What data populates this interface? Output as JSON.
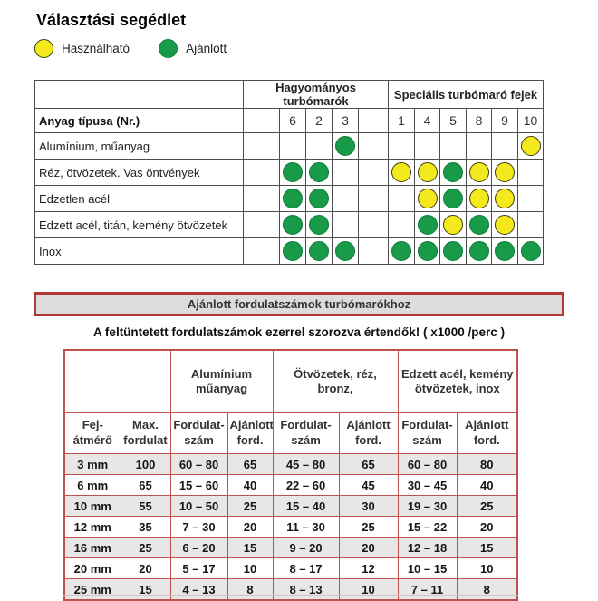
{
  "title": "Választási segédlet",
  "legend": {
    "usable_label": "Használható",
    "recommended_label": "Ajánlott"
  },
  "colors": {
    "usable_yellow": "#f3e91c",
    "recommended_green": "#189a49",
    "selection_table_border": "#4d4d4d",
    "speed_table_border": "#c0504d",
    "banner_red": "#b23832",
    "banner_gray": "#dcdcdc",
    "shaded_row_gray": "#e7e7e7"
  },
  "selection_table": {
    "row_header": "Anyag típusa (Nr.)",
    "groups": [
      {
        "label": "Hagyományos turbómarók",
        "columns": [
          "6",
          "2",
          "3"
        ]
      },
      {
        "label": "Speciális turbómaró fejek",
        "columns": [
          "1",
          "4",
          "5",
          "8",
          "9",
          "10"
        ]
      }
    ],
    "column_order": [
      "6",
      "2",
      "3",
      "1",
      "4",
      "5",
      "8",
      "9",
      "10"
    ],
    "rows": [
      {
        "label": "Alumínium, műanyag",
        "marks": [
          "",
          "",
          "recommended",
          "",
          "",
          "",
          "",
          "",
          "usable"
        ]
      },
      {
        "label": "Réz, ötvözetek. Vas öntvények",
        "marks": [
          "recommended",
          "recommended",
          "",
          "usable",
          "usable",
          "recommended",
          "usable",
          "usable",
          ""
        ]
      },
      {
        "label": "Edzetlen acél",
        "marks": [
          "recommended",
          "recommended",
          "",
          "",
          "usable",
          "recommended",
          "usable",
          "usable",
          ""
        ]
      },
      {
        "label": "Edzett acél, titán, kemény ötvözetek",
        "marks": [
          "recommended",
          "recommended",
          "",
          "",
          "recommended",
          "usable",
          "recommended",
          "usable",
          ""
        ]
      },
      {
        "label": "Inox",
        "marks": [
          "recommended",
          "recommended",
          "recommended",
          "recommended",
          "recommended",
          "recommended",
          "recommended",
          "recommended",
          "recommended"
        ]
      }
    ]
  },
  "speed_section": {
    "banner": "Ajánlott fordulatszámok turbómarókhoz",
    "note": "A feltüntetett fordulatszámok ezerrel szorozva értendők! ( x1000 /perc )",
    "group_headers": [
      "Alumínium műanyag",
      "Ötvözetek, réz, bronz,",
      "Edzett acél, kemény ötvözetek, inox"
    ],
    "column_headers": [
      "Fej-átmérő",
      "Max. fordulat",
      "Fordulat-szám",
      "Ajánlott ford.",
      "Fordulat-szám",
      "Ajánlott ford.",
      "Fordulat-szám",
      "Ajánlott ford."
    ],
    "rows": [
      [
        "3 mm",
        "100",
        "60 – 80",
        "65",
        "45 – 80",
        "65",
        "60 – 80",
        "80"
      ],
      [
        "6 mm",
        "65",
        "15 – 60",
        "40",
        "22 – 60",
        "45",
        "30 – 45",
        "40"
      ],
      [
        "10 mm",
        "55",
        "10 – 50",
        "25",
        "15 – 40",
        "30",
        "19 – 30",
        "25"
      ],
      [
        "12 mm",
        "35",
        "7 – 30",
        "20",
        "11 – 30",
        "25",
        "15 – 22",
        "20"
      ],
      [
        "16 mm",
        "25",
        "6 – 20",
        "15",
        "9 – 20",
        "20",
        "12 – 18",
        "15"
      ],
      [
        "20 mm",
        "20",
        "5 – 17",
        "10",
        "8 – 17",
        "12",
        "10 – 15",
        "10"
      ],
      [
        "25 mm",
        "15",
        "4 – 13",
        "8",
        "8 – 13",
        "10",
        "7 – 11",
        "8"
      ]
    ]
  }
}
